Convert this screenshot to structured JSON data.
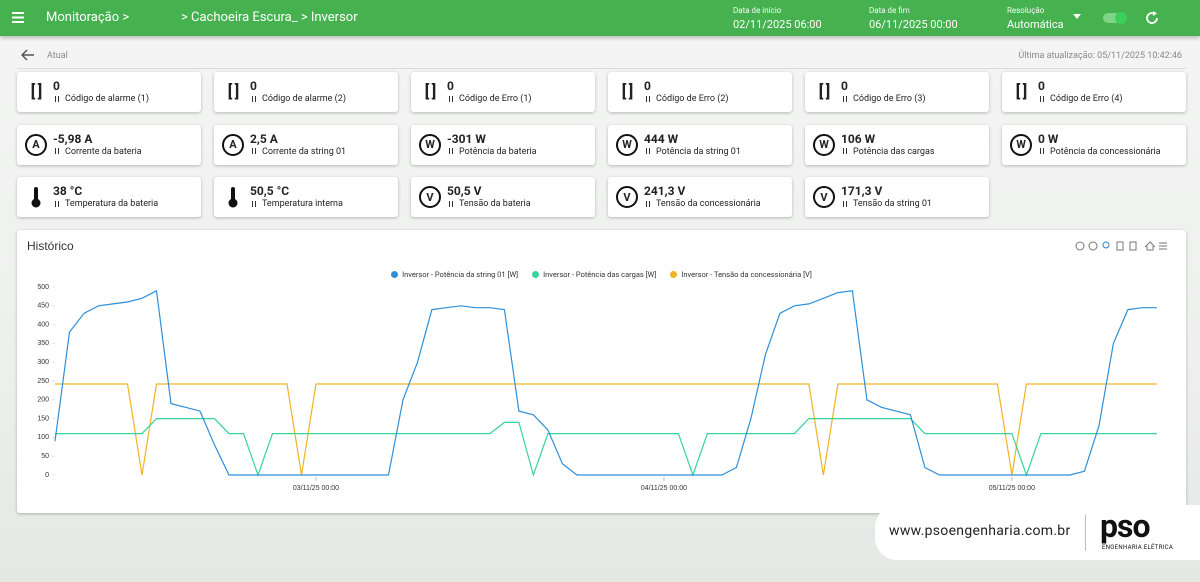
{
  "header": {
    "title": "Monitoração >",
    "breadcrumb": "> Cachoeira Escura_ > Inversor",
    "start_label": "Data de início",
    "start_value": "02/11/2025 06:00",
    "end_label": "Data de fim",
    "end_value": "06/11/2025 00:00",
    "resolution_label": "Resolução",
    "resolution_value": "Automática"
  },
  "status": {
    "current": "Atual",
    "last_update": "Última atualização: 05/11/2025 10:42:46"
  },
  "cards": [
    {
      "icon": "[ ]",
      "value": "0",
      "label": "Código de alarme (1)"
    },
    {
      "icon": "[ ]",
      "value": "0",
      "label": "Código de alarme (2)"
    },
    {
      "icon": "[ ]",
      "value": "0",
      "label": "Código de Erro (1)"
    },
    {
      "icon": "[ ]",
      "value": "0",
      "label": "Código de Erro (2)"
    },
    {
      "icon": "[ ]",
      "value": "0",
      "label": "Código de Erro (3)"
    },
    {
      "icon": "[ ]",
      "value": "0",
      "label": "Código de Erro (4)"
    },
    {
      "icon": "A",
      "value": "-5,98 A",
      "label": "Corrente da bateria"
    },
    {
      "icon": "A",
      "value": "2,5 A",
      "label": "Corrente da string 01"
    },
    {
      "icon": "W",
      "value": "-301 W",
      "label": "Potência da bateria"
    },
    {
      "icon": "W",
      "value": "444 W",
      "label": "Potência da string 01"
    },
    {
      "icon": "W",
      "value": "106 W",
      "label": "Potência das cargas"
    },
    {
      "icon": "W",
      "value": "0 W",
      "label": "Potência da concessionária"
    },
    {
      "value": "38 °C",
      "label": "Temperatura da bateria"
    },
    {
      "value": "50,5 °C",
      "label": "Temperatura interna"
    },
    {
      "icon": "V",
      "value": "50,5 V",
      "label": "Tensão da bateria"
    },
    {
      "icon": "V",
      "value": "241,3 V",
      "label": "Tensão da concessionária"
    },
    {
      "icon": "V",
      "value": "171,3 V",
      "label": "Tensão da string 01"
    }
  ],
  "chart_data": {
    "type": "line",
    "title": "Histórico",
    "x": [
      "02/11/25 06:00",
      "02/11/25 07:00",
      "02/11/25 08:00",
      "02/11/25 09:00",
      "02/11/25 10:00",
      "02/11/25 11:00",
      "02/11/25 12:00",
      "02/11/25 13:00",
      "02/11/25 14:00",
      "02/11/25 15:00",
      "02/11/25 16:00",
      "02/11/25 17:00",
      "02/11/25 18:00",
      "02/11/25 19:00",
      "02/11/25 20:00",
      "02/11/25 21:00",
      "02/11/25 22:00",
      "02/11/25 23:00",
      "03/11/25 00:00",
      "03/11/25 01:00",
      "03/11/25 02:00",
      "03/11/25 03:00",
      "03/11/25 04:00",
      "03/11/25 05:00",
      "03/11/25 06:00",
      "03/11/25 07:00",
      "03/11/25 08:00",
      "03/11/25 09:00",
      "03/11/25 10:00",
      "03/11/25 11:00",
      "03/11/25 12:00",
      "03/11/25 13:00",
      "03/11/25 14:00",
      "03/11/25 15:00",
      "03/11/25 16:00",
      "03/11/25 17:00",
      "03/11/25 18:00",
      "03/11/25 19:00",
      "03/11/25 20:00",
      "03/11/25 21:00",
      "03/11/25 22:00",
      "03/11/25 23:00",
      "04/11/25 00:00",
      "04/11/25 01:00",
      "04/11/25 02:00",
      "04/11/25 03:00",
      "04/11/25 04:00",
      "04/11/25 05:00",
      "04/11/25 06:00",
      "04/11/25 07:00",
      "04/11/25 08:00",
      "04/11/25 09:00",
      "04/11/25 10:00",
      "04/11/25 11:00",
      "04/11/25 12:00",
      "04/11/25 13:00",
      "04/11/25 14:00",
      "04/11/25 15:00",
      "04/11/25 16:00",
      "04/11/25 17:00",
      "04/11/25 18:00",
      "04/11/25 19:00",
      "04/11/25 20:00",
      "04/11/25 21:00",
      "04/11/25 22:00",
      "04/11/25 23:00",
      "05/11/25 00:00",
      "05/11/25 01:00",
      "05/11/25 02:00",
      "05/11/25 03:00",
      "05/11/25 04:00",
      "05/11/25 05:00",
      "05/11/25 06:00",
      "05/11/25 07:00",
      "05/11/25 08:00",
      "05/11/25 09:00",
      "05/11/25 10:00"
    ],
    "series": [
      {
        "name": "Inversor - Potência da string 01 [W]",
        "color": "#2f8fd8",
        "values": [
          90,
          380,
          430,
          450,
          455,
          460,
          470,
          490,
          190,
          180,
          170,
          80,
          0,
          0,
          0,
          0,
          0,
          0,
          0,
          0,
          0,
          0,
          0,
          0,
          200,
          300,
          440,
          445,
          450,
          445,
          445,
          440,
          170,
          160,
          120,
          30,
          0,
          0,
          0,
          0,
          0,
          0,
          0,
          0,
          0,
          0,
          0,
          20,
          150,
          320,
          430,
          450,
          455,
          470,
          485,
          490,
          200,
          180,
          170,
          160,
          20,
          0,
          0,
          0,
          0,
          0,
          0,
          0,
          0,
          0,
          0,
          10,
          130,
          350,
          440,
          445,
          445
        ]
      },
      {
        "name": "Inversor - Potência das cargas [W]",
        "color": "#35d49a",
        "values": [
          110,
          110,
          110,
          110,
          110,
          110,
          110,
          150,
          150,
          150,
          150,
          150,
          110,
          110,
          0,
          110,
          110,
          110,
          110,
          110,
          110,
          110,
          110,
          110,
          110,
          110,
          110,
          110,
          110,
          110,
          110,
          140,
          140,
          0,
          110,
          110,
          110,
          110,
          110,
          110,
          110,
          110,
          110,
          110,
          0,
          110,
          110,
          110,
          110,
          110,
          110,
          110,
          150,
          150,
          150,
          150,
          150,
          150,
          150,
          150,
          110,
          110,
          110,
          110,
          110,
          110,
          110,
          0,
          110,
          110,
          110,
          110,
          110,
          110,
          110,
          110,
          110
        ]
      },
      {
        "name": "Inversor - Tensão da concessionária [V]",
        "color": "#f0b323",
        "values": [
          242,
          242,
          242,
          242,
          242,
          242,
          0,
          242,
          242,
          242,
          242,
          242,
          242,
          242,
          242,
          242,
          242,
          0,
          242,
          242,
          242,
          242,
          242,
          242,
          242,
          242,
          242,
          242,
          242,
          242,
          242,
          242,
          242,
          242,
          242,
          242,
          242,
          242,
          242,
          242,
          242,
          242,
          242,
          242,
          242,
          242,
          242,
          242,
          242,
          242,
          242,
          242,
          242,
          0,
          242,
          242,
          242,
          242,
          242,
          242,
          242,
          242,
          242,
          242,
          242,
          242,
          0,
          242,
          242,
          242,
          242,
          242,
          242,
          242,
          242,
          242,
          242
        ]
      }
    ],
    "xlim": [
      "02/11/25 06:00",
      "05/11/25 10:42"
    ],
    "xticks": [
      "03/11/25 00:00",
      "04/11/25 00:00",
      "05/11/25 00:00"
    ],
    "ylim": [
      0,
      500
    ],
    "yticks": [
      0,
      50,
      100,
      150,
      200,
      250,
      300,
      350,
      400,
      450,
      500
    ],
    "grid": false,
    "legend": "top"
  },
  "footer": {
    "website": "www.psoengenharia.com.br",
    "logo": "pso",
    "logo_subtitle": "ENGENHARIA ELÉTRICA"
  }
}
